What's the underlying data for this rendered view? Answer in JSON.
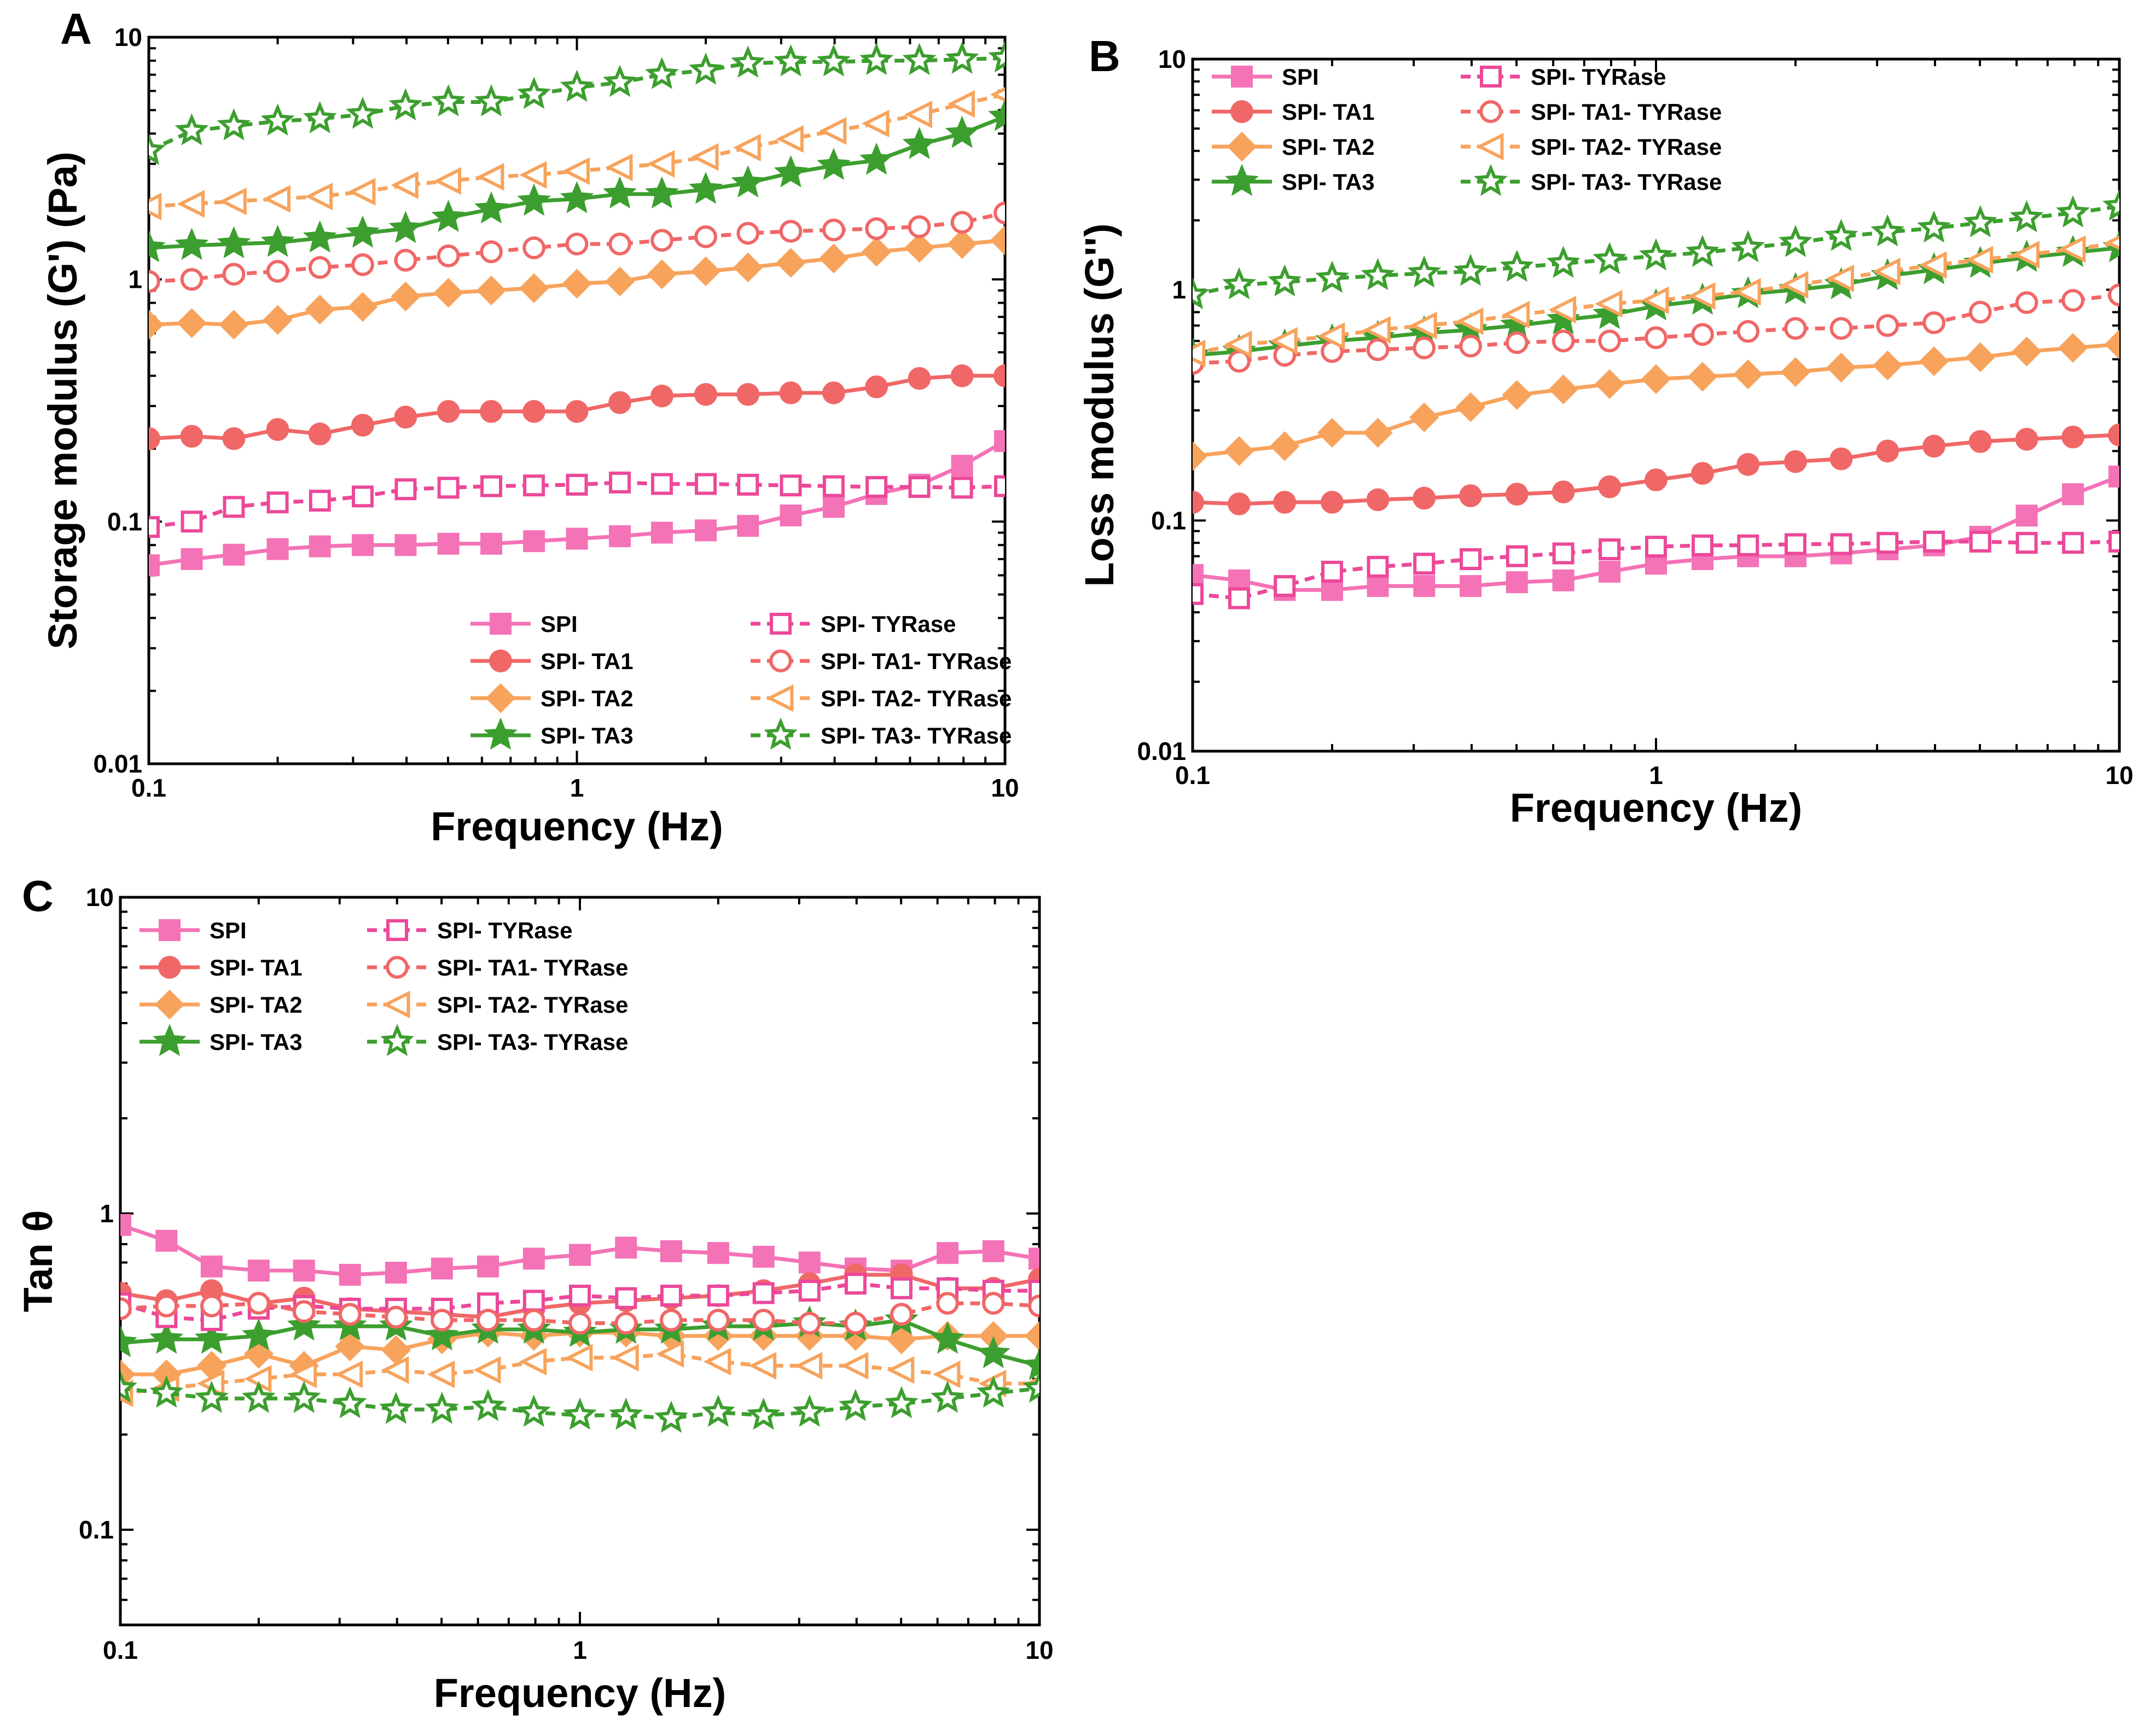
{
  "figure": {
    "series_styles": {
      "SPI": {
        "color": "#F472B6",
        "marker": "square",
        "filled": true,
        "dashed": false
      },
      "SPI- TA1": {
        "color": "#F06767",
        "marker": "circle",
        "filled": true,
        "dashed": false
      },
      "SPI- TA2": {
        "color": "#F7A35C",
        "marker": "diamond",
        "filled": true,
        "dashed": false
      },
      "SPI- TA3": {
        "color": "#3C9E2E",
        "marker": "star",
        "filled": true,
        "dashed": false
      },
      "SPI- TYRase": {
        "color": "#EC4899",
        "marker": "square",
        "filled": false,
        "dashed": true
      },
      "SPI- TA1- TYRase": {
        "color": "#F06767",
        "marker": "circle",
        "filled": false,
        "dashed": true
      },
      "SPI- TA2- TYRase": {
        "color": "#F7A35C",
        "marker": "triangle-left",
        "filled": false,
        "dashed": true
      },
      "SPI- TA3- TYRase": {
        "color": "#3C9E2E",
        "marker": "star",
        "filled": false,
        "dashed": true
      }
    }
  },
  "chart_data": [
    {
      "panel": "A",
      "type": "line",
      "xscale": "log",
      "yscale": "log",
      "xlabel": "Frequency (Hz)",
      "ylabel": "Storage modulus (G') (Pa)",
      "xlim": [
        0.1,
        10
      ],
      "ylim": [
        0.01,
        10
      ],
      "xticks": [
        "0.1",
        "1",
        "10"
      ],
      "yticks": [
        "0.01",
        "0.1",
        "1",
        "10"
      ],
      "legend_position": "lower-right",
      "legend_columns": [
        [
          "SPI",
          "SPI- TA1",
          "SPI- TA2",
          "SPI- TA3"
        ],
        [
          "SPI- TYRase",
          "SPI- TA1- TYRase",
          "SPI- TA2- TYRase",
          "SPI- TA3- TYRase"
        ]
      ],
      "x": [
        0.1,
        0.126,
        0.158,
        0.2,
        0.251,
        0.316,
        0.398,
        0.501,
        0.631,
        0.794,
        1.0,
        1.26,
        1.58,
        2.0,
        2.51,
        3.16,
        3.98,
        5.01,
        6.31,
        7.94,
        10.0
      ],
      "series": [
        {
          "name": "SPI",
          "values": [
            0.066,
            0.07,
            0.073,
            0.077,
            0.079,
            0.08,
            0.08,
            0.081,
            0.081,
            0.083,
            0.085,
            0.087,
            0.09,
            0.092,
            0.096,
            0.106,
            0.115,
            0.13,
            0.142,
            0.17,
            0.215
          ]
        },
        {
          "name": "SPI- TA1",
          "values": [
            0.22,
            0.225,
            0.22,
            0.24,
            0.23,
            0.25,
            0.27,
            0.285,
            0.285,
            0.285,
            0.285,
            0.31,
            0.33,
            0.335,
            0.335,
            0.34,
            0.34,
            0.36,
            0.39,
            0.4,
            0.4
          ]
        },
        {
          "name": "SPI- TA2",
          "values": [
            0.65,
            0.66,
            0.65,
            0.68,
            0.75,
            0.77,
            0.85,
            0.88,
            0.9,
            0.92,
            0.96,
            0.98,
            1.05,
            1.08,
            1.12,
            1.17,
            1.22,
            1.3,
            1.35,
            1.4,
            1.45
          ]
        },
        {
          "name": "SPI- TA3",
          "values": [
            1.35,
            1.38,
            1.4,
            1.42,
            1.48,
            1.55,
            1.62,
            1.8,
            1.95,
            2.1,
            2.15,
            2.25,
            2.25,
            2.35,
            2.5,
            2.75,
            2.95,
            3.1,
            3.6,
            4.0,
            4.7
          ]
        },
        {
          "name": "SPI- TYRase",
          "values": [
            0.095,
            0.1,
            0.115,
            0.12,
            0.122,
            0.127,
            0.136,
            0.138,
            0.14,
            0.141,
            0.142,
            0.145,
            0.143,
            0.143,
            0.142,
            0.141,
            0.14,
            0.139,
            0.139,
            0.138,
            0.14
          ]
        },
        {
          "name": "SPI- TA1- TYRase",
          "values": [
            0.98,
            1.0,
            1.05,
            1.08,
            1.12,
            1.15,
            1.2,
            1.25,
            1.3,
            1.35,
            1.4,
            1.4,
            1.45,
            1.5,
            1.55,
            1.58,
            1.6,
            1.62,
            1.65,
            1.72,
            1.88
          ]
        },
        {
          "name": "SPI- TA2- TYRase",
          "values": [
            2.0,
            2.05,
            2.1,
            2.15,
            2.2,
            2.3,
            2.45,
            2.55,
            2.65,
            2.7,
            2.8,
            2.9,
            3.0,
            3.2,
            3.5,
            3.8,
            4.1,
            4.4,
            4.8,
            5.3,
            5.8
          ]
        },
        {
          "name": "SPI- TA3- TYRase",
          "values": [
            3.4,
            4.1,
            4.3,
            4.5,
            4.6,
            4.8,
            5.2,
            5.4,
            5.4,
            5.8,
            6.2,
            6.5,
            7.0,
            7.3,
            7.8,
            7.9,
            7.9,
            8.0,
            8.0,
            8.1,
            8.2
          ]
        }
      ]
    },
    {
      "panel": "B",
      "type": "line",
      "xscale": "log",
      "yscale": "log",
      "xlabel": "Frequency (Hz)",
      "ylabel": "Loss modulus  (G'')",
      "xlim": [
        0.1,
        10
      ],
      "ylim": [
        0.01,
        10
      ],
      "xticks": [
        "0.1",
        "1",
        "10"
      ],
      "yticks": [
        "0.01",
        "0.1",
        "1",
        "10"
      ],
      "legend_position": "top-left",
      "legend_columns": [
        [
          "SPI",
          "SPI- TA1",
          "SPI- TA2",
          "SPI- TA3"
        ],
        [
          "SPI- TYRase",
          "SPI- TA1- TYRase",
          "SPI- TA2- TYRase",
          "SPI- TA3- TYRase"
        ]
      ],
      "x": [
        0.1,
        0.126,
        0.158,
        0.2,
        0.251,
        0.316,
        0.398,
        0.501,
        0.631,
        0.794,
        1.0,
        1.26,
        1.58,
        2.0,
        2.51,
        3.16,
        3.98,
        5.01,
        6.31,
        7.94,
        10.0
      ],
      "series": [
        {
          "name": "SPI",
          "values": [
            0.058,
            0.055,
            0.05,
            0.05,
            0.052,
            0.052,
            0.052,
            0.054,
            0.055,
            0.06,
            0.065,
            0.068,
            0.07,
            0.07,
            0.072,
            0.075,
            0.078,
            0.085,
            0.105,
            0.13,
            0.155
          ]
        },
        {
          "name": "SPI- TA1",
          "values": [
            0.12,
            0.118,
            0.12,
            0.12,
            0.123,
            0.125,
            0.128,
            0.13,
            0.133,
            0.14,
            0.15,
            0.16,
            0.175,
            0.18,
            0.185,
            0.2,
            0.21,
            0.22,
            0.225,
            0.23,
            0.235
          ]
        },
        {
          "name": "SPI- TA2",
          "values": [
            0.19,
            0.2,
            0.21,
            0.24,
            0.24,
            0.28,
            0.31,
            0.35,
            0.37,
            0.39,
            0.41,
            0.42,
            0.43,
            0.44,
            0.46,
            0.47,
            0.49,
            0.51,
            0.54,
            0.56,
            0.58
          ]
        },
        {
          "name": "SPI- TA3",
          "values": [
            0.52,
            0.54,
            0.57,
            0.6,
            0.62,
            0.65,
            0.67,
            0.7,
            0.74,
            0.78,
            0.85,
            0.9,
            0.96,
            1.0,
            1.05,
            1.15,
            1.22,
            1.3,
            1.38,
            1.45,
            1.52
          ]
        },
        {
          "name": "SPI- TYRase",
          "values": [
            0.048,
            0.046,
            0.052,
            0.06,
            0.063,
            0.065,
            0.068,
            0.07,
            0.072,
            0.075,
            0.077,
            0.078,
            0.078,
            0.079,
            0.079,
            0.08,
            0.081,
            0.081,
            0.08,
            0.08,
            0.081
          ]
        },
        {
          "name": "SPI- TA1- TYRase",
          "values": [
            0.48,
            0.49,
            0.52,
            0.54,
            0.55,
            0.56,
            0.57,
            0.59,
            0.6,
            0.6,
            0.62,
            0.64,
            0.66,
            0.68,
            0.68,
            0.7,
            0.72,
            0.8,
            0.88,
            0.9,
            0.95
          ]
        },
        {
          "name": "SPI- TA2- TYRase",
          "values": [
            0.53,
            0.58,
            0.6,
            0.63,
            0.67,
            0.7,
            0.73,
            0.78,
            0.82,
            0.87,
            0.9,
            0.94,
            0.98,
            1.05,
            1.12,
            1.2,
            1.28,
            1.35,
            1.42,
            1.5,
            1.6
          ]
        },
        {
          "name": "SPI- TA3- TYRase",
          "values": [
            0.95,
            1.05,
            1.08,
            1.12,
            1.15,
            1.18,
            1.2,
            1.25,
            1.3,
            1.35,
            1.4,
            1.45,
            1.52,
            1.6,
            1.7,
            1.78,
            1.85,
            1.95,
            2.05,
            2.15,
            2.3
          ]
        }
      ]
    },
    {
      "panel": "C",
      "type": "line",
      "xscale": "log",
      "yscale": "log",
      "xlabel": "Frequency (Hz)",
      "ylabel": "Tan θ",
      "xlim": [
        0.1,
        10
      ],
      "ylim": [
        0.05,
        10
      ],
      "xticks": [
        "0.1",
        "1",
        "10"
      ],
      "yticks": [
        "0.1",
        "1",
        "10"
      ],
      "legend_position": "top-left",
      "legend_columns": [
        [
          "SPI",
          "SPI- TA1",
          "SPI- TA2",
          "SPI- TA3"
        ],
        [
          "SPI- TYRase",
          "SPI- TA1- TYRase",
          "SPI- TA2- TYRase",
          "SPI- TA3- TYRase"
        ]
      ],
      "x": [
        0.1,
        0.126,
        0.158,
        0.2,
        0.251,
        0.316,
        0.398,
        0.501,
        0.631,
        0.794,
        1.0,
        1.26,
        1.58,
        2.0,
        2.51,
        3.16,
        3.98,
        5.01,
        6.31,
        7.94,
        10.0
      ],
      "series": [
        {
          "name": "SPI",
          "values": [
            0.92,
            0.82,
            0.68,
            0.66,
            0.66,
            0.64,
            0.65,
            0.67,
            0.68,
            0.72,
            0.74,
            0.78,
            0.76,
            0.75,
            0.73,
            0.7,
            0.67,
            0.66,
            0.75,
            0.76,
            0.72
          ]
        },
        {
          "name": "SPI- TA1",
          "values": [
            0.56,
            0.53,
            0.57,
            0.52,
            0.54,
            0.5,
            0.49,
            0.48,
            0.47,
            0.5,
            0.52,
            0.53,
            0.54,
            0.55,
            0.57,
            0.6,
            0.64,
            0.64,
            0.58,
            0.58,
            0.62
          ]
        },
        {
          "name": "SPI- TA2",
          "values": [
            0.31,
            0.31,
            0.33,
            0.36,
            0.33,
            0.38,
            0.37,
            0.4,
            0.42,
            0.41,
            0.42,
            0.42,
            0.41,
            0.41,
            0.41,
            0.41,
            0.41,
            0.4,
            0.41,
            0.41,
            0.41
          ]
        },
        {
          "name": "SPI- TA3",
          "values": [
            0.39,
            0.4,
            0.4,
            0.41,
            0.44,
            0.44,
            0.44,
            0.41,
            0.43,
            0.43,
            0.42,
            0.43,
            0.43,
            0.44,
            0.44,
            0.45,
            0.44,
            0.46,
            0.4,
            0.36,
            0.33
          ]
        },
        {
          "name": "SPI- TYRase",
          "values": [
            0.52,
            0.47,
            0.46,
            0.5,
            0.51,
            0.5,
            0.5,
            0.5,
            0.52,
            0.53,
            0.55,
            0.54,
            0.55,
            0.55,
            0.56,
            0.57,
            0.6,
            0.58,
            0.58,
            0.57,
            0.57
          ]
        },
        {
          "name": "SPI- TA1- TYRase",
          "values": [
            0.5,
            0.51,
            0.51,
            0.52,
            0.49,
            0.48,
            0.47,
            0.46,
            0.46,
            0.46,
            0.45,
            0.45,
            0.46,
            0.46,
            0.46,
            0.45,
            0.45,
            0.48,
            0.52,
            0.52,
            0.51
          ]
        },
        {
          "name": "SPI- TA2- TYRase",
          "values": [
            0.27,
            0.28,
            0.29,
            0.3,
            0.31,
            0.31,
            0.32,
            0.31,
            0.32,
            0.34,
            0.35,
            0.35,
            0.36,
            0.34,
            0.33,
            0.33,
            0.33,
            0.32,
            0.31,
            0.29,
            0.29
          ]
        },
        {
          "name": "SPI- TA3- TYRase",
          "values": [
            0.28,
            0.27,
            0.26,
            0.26,
            0.26,
            0.25,
            0.24,
            0.24,
            0.245,
            0.235,
            0.23,
            0.23,
            0.225,
            0.235,
            0.23,
            0.235,
            0.245,
            0.25,
            0.26,
            0.27,
            0.28
          ]
        }
      ]
    }
  ]
}
